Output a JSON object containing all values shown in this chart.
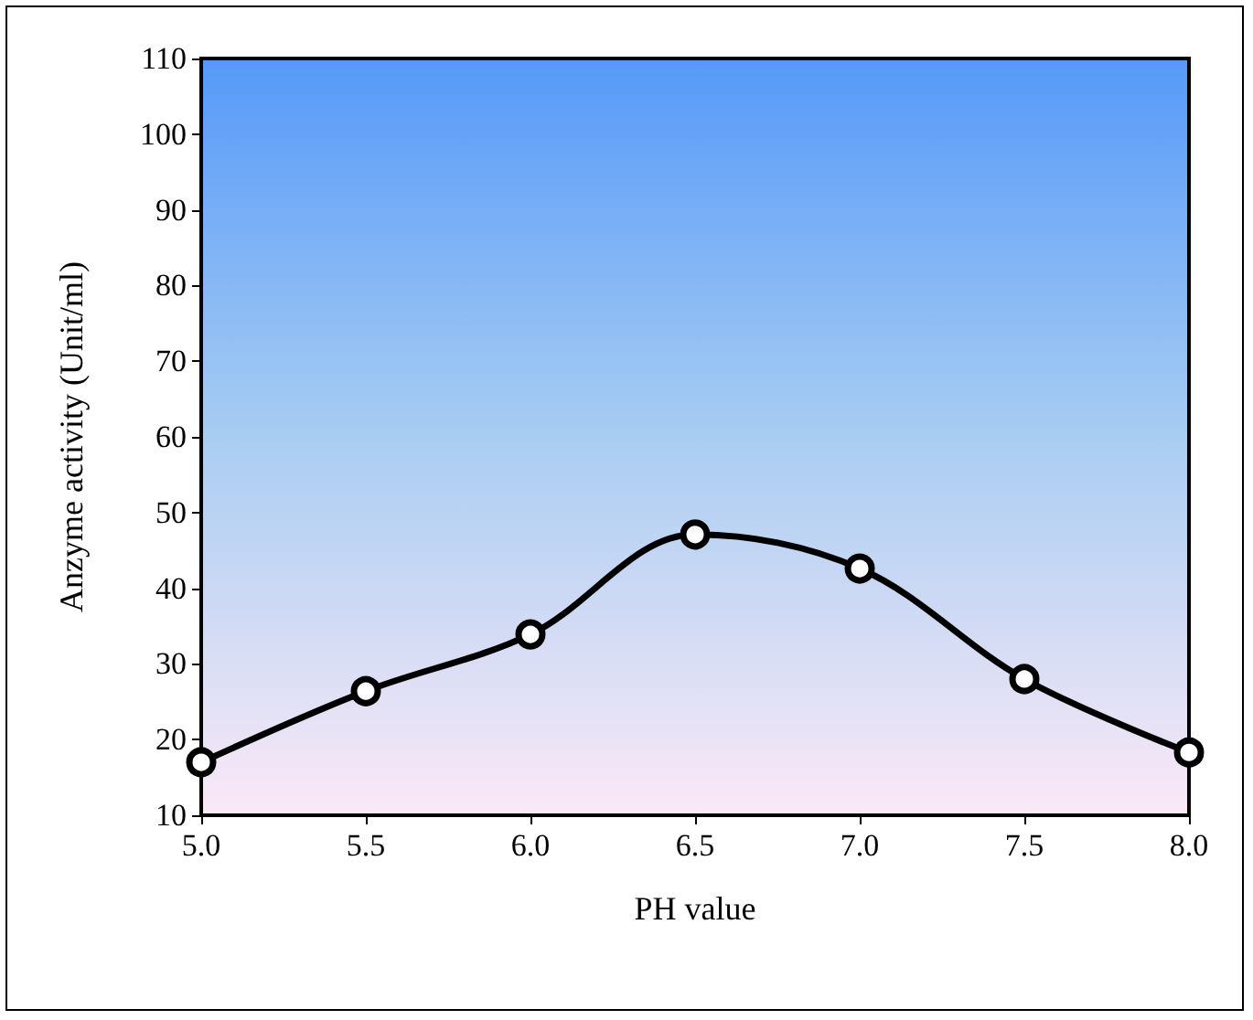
{
  "chart_data": {
    "type": "line",
    "xlabel": "PH value",
    "ylabel": "Anzyme activity (Unit/ml)",
    "x": [
      5.0,
      5.5,
      6.0,
      6.5,
      7.0,
      7.5,
      8.0
    ],
    "series": [
      {
        "color": "#000000",
        "values": [
          17,
          26.4,
          33.9,
          47.1,
          42.6,
          28,
          18.3
        ]
      }
    ],
    "xlim": [
      5,
      8
    ],
    "xticks": [
      {
        "value": 5,
        "label": "5.0"
      },
      {
        "value": 5.5,
        "label": "5.5"
      },
      {
        "value": 6,
        "label": "6.0"
      },
      {
        "value": 6.5,
        "label": "6.5"
      },
      {
        "value": 7,
        "label": "7.0"
      },
      {
        "value": 7.5,
        "label": "7.5"
      },
      {
        "value": 8,
        "label": "8.0"
      }
    ],
    "ylim": [
      10,
      110
    ],
    "yticks": [
      10,
      20,
      30,
      40,
      50,
      60,
      70,
      80,
      90,
      100,
      110
    ],
    "grid": false,
    "marker": "circle",
    "line_style": "solid"
  }
}
